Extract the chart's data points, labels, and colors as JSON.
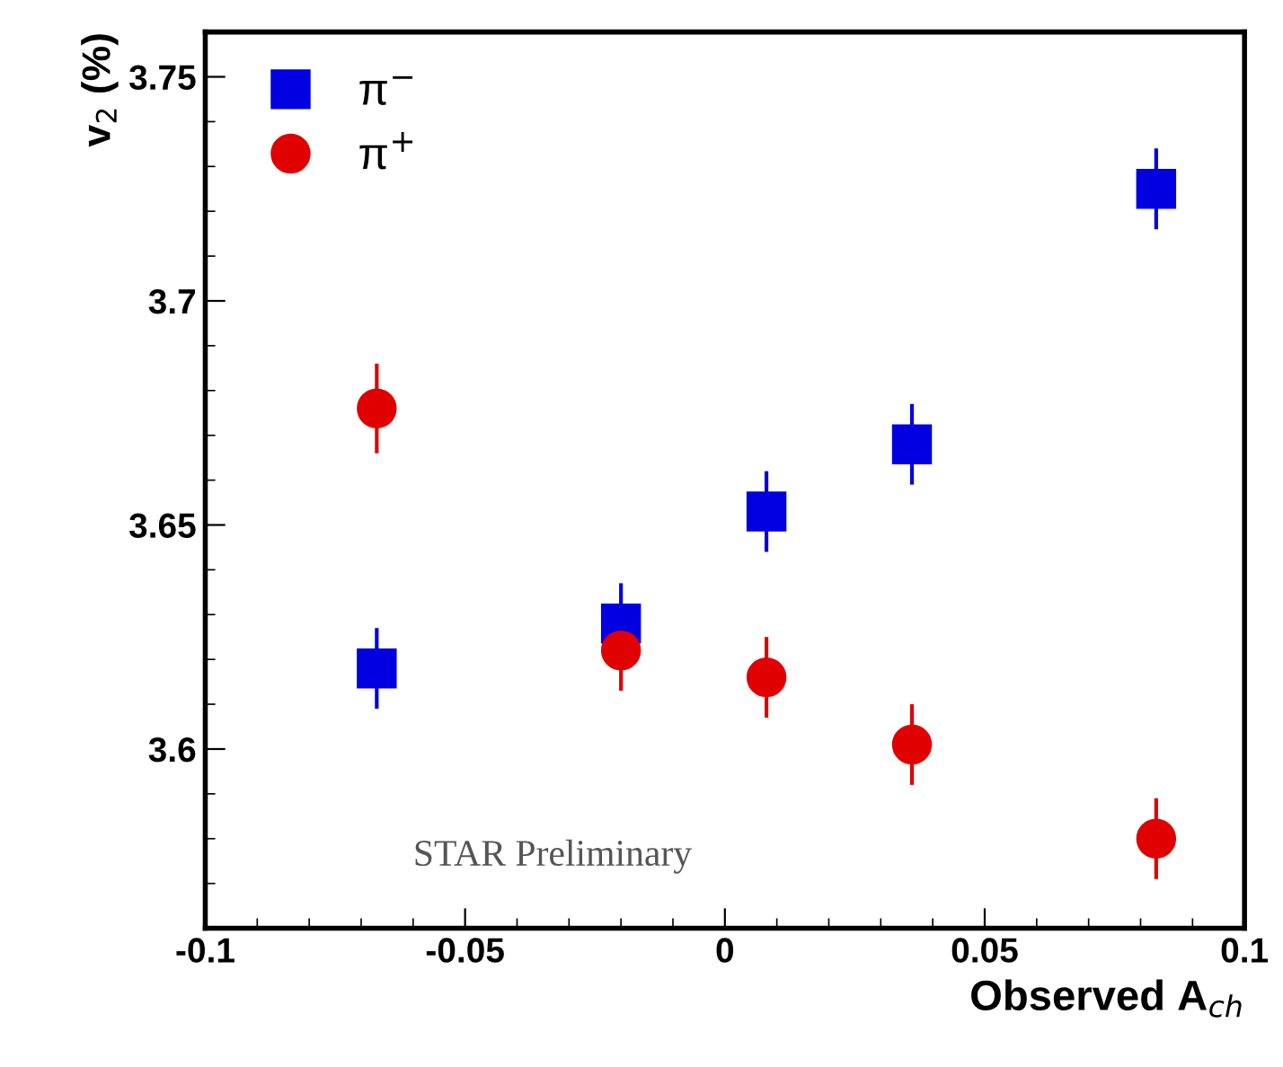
{
  "chart_data": {
    "type": "scatter",
    "xlabel": "Observed A$_{ch}$",
    "ylabel": "v$_{2}$ (%)",
    "xlim": [
      -0.1,
      0.1
    ],
    "xticks": [
      -0.1,
      -0.05,
      0,
      0.05,
      0.1
    ],
    "ylim": [
      3.56,
      3.76
    ],
    "yticks": [
      3.6,
      3.65,
      3.7,
      3.75
    ],
    "legend": "top left",
    "grid": false,
    "annotations": [
      "STAR Preliminary"
    ],
    "series": [
      {
        "name": "π$^{−}$",
        "color": "#0000e0",
        "marker": "square",
        "x": [
          -0.067,
          -0.02,
          0.008,
          0.036,
          0.083
        ],
        "values": [
          3.618,
          3.628,
          3.653,
          3.668,
          3.725
        ],
        "errors": [
          0.009,
          0.009,
          0.009,
          0.009,
          0.009
        ]
      },
      {
        "name": "π$^{+}$",
        "color": "#e00000",
        "marker": "circle",
        "x": [
          -0.067,
          -0.02,
          0.008,
          0.036,
          0.083
        ],
        "values": [
          3.676,
          3.622,
          3.616,
          3.601,
          3.58
        ],
        "errors": [
          0.01,
          0.009,
          0.009,
          0.009,
          0.009
        ]
      }
    ]
  }
}
